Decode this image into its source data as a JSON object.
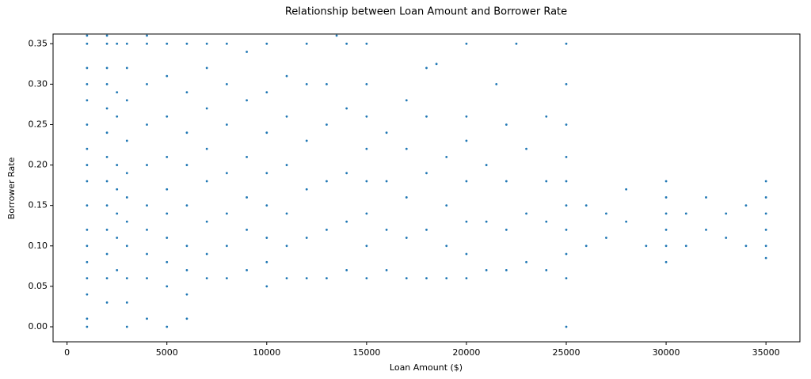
{
  "chart_data": {
    "type": "scatter",
    "title": "Relationship between Loan Amount and Borrower Rate",
    "x_label": "Loan Amount ($)",
    "y_label": "Borrower Rate",
    "color": "#1f77b4",
    "xlim": [
      -700,
      36700
    ],
    "ylim": [
      -0.0186,
      0.362
    ],
    "xticks": [
      0,
      5000,
      10000,
      15000,
      20000,
      25000,
      30000,
      35000
    ],
    "yticks": [
      {
        "value": 0,
        "label": "0.00"
      },
      {
        "value": 0.05,
        "label": "0.05"
      },
      {
        "value": 0.1,
        "label": "0.10"
      },
      {
        "value": 0.15,
        "label": "0.15"
      },
      {
        "value": 0.2,
        "label": "0.20"
      },
      {
        "value": 0.25,
        "label": "0.25"
      },
      {
        "value": 0.3,
        "label": "0.30"
      },
      {
        "value": 0.35,
        "label": "0.35"
      }
    ],
    "x": [
      1000,
      1000,
      1000,
      1000,
      1000,
      1000,
      1000,
      1000,
      1000,
      1000,
      1000,
      1000,
      1000,
      1000,
      1000,
      1000,
      1000,
      2000,
      2000,
      2000,
      2000,
      2000,
      2000,
      2000,
      2000,
      2000,
      2000,
      2000,
      2000,
      2000,
      2500,
      2500,
      2500,
      2500,
      2500,
      2500,
      2500,
      2500,
      3000,
      3000,
      3000,
      3000,
      3000,
      3000,
      3000,
      3000,
      3000,
      3000,
      3000,
      4000,
      4000,
      4000,
      4000,
      4000,
      4000,
      4000,
      4000,
      4000,
      4000,
      5000,
      5000,
      5000,
      5000,
      5000,
      5000,
      5000,
      5000,
      5000,
      5000,
      6000,
      6000,
      6000,
      6000,
      6000,
      6000,
      6000,
      6000,
      6000,
      7000,
      7000,
      7000,
      7000,
      7000,
      7000,
      7000,
      7000,
      8000,
      8000,
      8000,
      8000,
      8000,
      8000,
      8000,
      9000,
      9000,
      9000,
      9000,
      9000,
      9000,
      10000,
      10000,
      10000,
      10000,
      10000,
      10000,
      10000,
      10000,
      11000,
      11000,
      11000,
      11000,
      11000,
      11000,
      12000,
      12000,
      12000,
      12000,
      12000,
      12000,
      13000,
      13000,
      13000,
      13000,
      13000,
      14000,
      14000,
      14000,
      14000,
      14000,
      15000,
      15000,
      15000,
      15000,
      15000,
      15000,
      15000,
      15000,
      16000,
      16000,
      16000,
      16000,
      17000,
      17000,
      17000,
      17000,
      17000,
      18000,
      18000,
      18000,
      18000,
      18000,
      19000,
      19000,
      19000,
      19000,
      20000,
      20000,
      20000,
      20000,
      20000,
      20000,
      20000,
      21000,
      21000,
      21000,
      22000,
      22000,
      22000,
      22000,
      23000,
      23000,
      23000,
      24000,
      24000,
      24000,
      24000,
      25000,
      25000,
      25000,
      25000,
      25000,
      25000,
      25000,
      25000,
      25000,
      25000,
      26000,
      26000,
      27000,
      27000,
      28000,
      28000,
      30000,
      30000,
      30000,
      30000,
      30000,
      30000,
      31000,
      31000,
      32000,
      32000,
      33000,
      33000,
      34000,
      34000,
      35000,
      35000,
      35000,
      35000,
      35000,
      35000,
      13500,
      21500,
      22500,
      18500,
      29000
    ],
    "y": [
      0,
      0.01,
      0.04,
      0.06,
      0.08,
      0.1,
      0.12,
      0.15,
      0.18,
      0.2,
      0.22,
      0.25,
      0.28,
      0.3,
      0.32,
      0.35,
      0.36,
      0.03,
      0.06,
      0.09,
      0.12,
      0.15,
      0.18,
      0.21,
      0.24,
      0.27,
      0.3,
      0.32,
      0.35,
      0.36,
      0.07,
      0.11,
      0.14,
      0.17,
      0.2,
      0.26,
      0.29,
      0.35,
      0,
      0.03,
      0.06,
      0.1,
      0.13,
      0.16,
      0.19,
      0.23,
      0.28,
      0.32,
      0.35,
      0.01,
      0.06,
      0.09,
      0.12,
      0.15,
      0.2,
      0.25,
      0.3,
      0.35,
      0.36,
      0,
      0.05,
      0.08,
      0.11,
      0.14,
      0.17,
      0.21,
      0.26,
      0.31,
      0.35,
      0.01,
      0.04,
      0.07,
      0.1,
      0.15,
      0.2,
      0.24,
      0.29,
      0.35,
      0.06,
      0.09,
      0.13,
      0.18,
      0.22,
      0.27,
      0.32,
      0.35,
      0.06,
      0.1,
      0.14,
      0.19,
      0.25,
      0.3,
      0.35,
      0.07,
      0.12,
      0.16,
      0.21,
      0.28,
      0.34,
      0.05,
      0.08,
      0.11,
      0.15,
      0.19,
      0.24,
      0.29,
      0.35,
      0.06,
      0.1,
      0.14,
      0.2,
      0.26,
      0.31,
      0.06,
      0.11,
      0.17,
      0.23,
      0.3,
      0.35,
      0.06,
      0.12,
      0.18,
      0.25,
      0.3,
      0.07,
      0.13,
      0.19,
      0.27,
      0.35,
      0.06,
      0.1,
      0.14,
      0.18,
      0.22,
      0.26,
      0.3,
      0.35,
      0.07,
      0.12,
      0.18,
      0.24,
      0.06,
      0.11,
      0.16,
      0.22,
      0.28,
      0.06,
      0.12,
      0.19,
      0.26,
      0.32,
      0.06,
      0.1,
      0.15,
      0.21,
      0.06,
      0.09,
      0.13,
      0.18,
      0.23,
      0.26,
      0.35,
      0.07,
      0.13,
      0.2,
      0.07,
      0.12,
      0.18,
      0.25,
      0.08,
      0.14,
      0.22,
      0.07,
      0.13,
      0.18,
      0.26,
      0,
      0.06,
      0.09,
      0.12,
      0.15,
      0.18,
      0.21,
      0.25,
      0.3,
      0.35,
      0.1,
      0.15,
      0.11,
      0.14,
      0.13,
      0.17,
      0.08,
      0.1,
      0.12,
      0.14,
      0.16,
      0.18,
      0.1,
      0.14,
      0.12,
      0.16,
      0.11,
      0.14,
      0.1,
      0.15,
      0.085,
      0.1,
      0.12,
      0.14,
      0.16,
      0.18,
      0.36,
      0.3,
      0.35,
      0.325,
      0.1
    ]
  }
}
